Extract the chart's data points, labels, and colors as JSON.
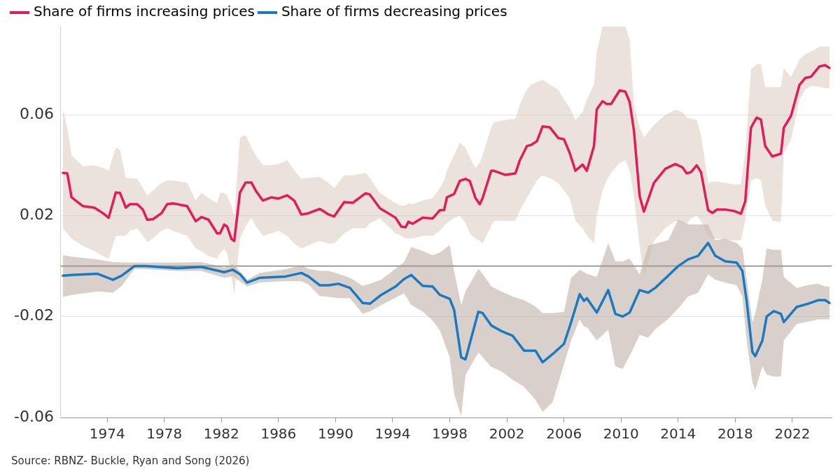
{
  "chart_data": {
    "type": "line",
    "xlim": [
      1970.75,
      2024.75
    ],
    "xticks": [
      1974,
      1978,
      1982,
      1986,
      1990,
      1994,
      1998,
      2002,
      2006,
      2010,
      2014,
      2018,
      2022
    ],
    "ylim": [
      -0.06,
      0.095
    ],
    "yticks": [
      -0.06,
      -0.02,
      0.02,
      0.06
    ],
    "grid": "y",
    "legend": "top left",
    "line_style": "solid",
    "ref_lines": [
      {
        "axis": "y",
        "value": 0,
        "color": "#808080"
      }
    ],
    "annotations": [
      "Source: RBNZ- Buckle, Ryan and Song (2026)"
    ],
    "series": [
      {
        "name": "Share of firms increasing prices",
        "color": "#e31b5d",
        "x": [
          1970.9,
          1971.2,
          1971.5,
          1972.3,
          1973.1,
          1973.7,
          1974.1,
          1974.6,
          1974.9,
          1975.3,
          1975.6,
          1976.1,
          1976.5,
          1976.8,
          1977.2,
          1977.8,
          1978.2,
          1978.6,
          1979.6,
          1980.2,
          1980.6,
          1981.1,
          1981.7,
          1981.9,
          1982.2,
          1982.4,
          1982.7,
          1982.9,
          1983.3,
          1983.7,
          1984.1,
          1984.4,
          1984.9,
          1985.5,
          1986.0,
          1986.6,
          1987.1,
          1987.6,
          1988.0,
          1988.9,
          1989.5,
          1989.9,
          1990.6,
          1991.2,
          1992.1,
          1992.4,
          1993.1,
          1994.2,
          1994.6,
          1994.9,
          1995.1,
          1995.4,
          1996.1,
          1996.8,
          1997.3,
          1997.6,
          1997.8,
          1998.3,
          1998.7,
          1999.1,
          1999.4,
          1999.8,
          2000.1,
          2000.3,
          2000.9,
          2001.1,
          2001.9,
          2002.6,
          2002.9,
          2003.4,
          2003.7,
          2004.1,
          2004.5,
          2005.0,
          2005.6,
          2006.0,
          2006.4,
          2006.8,
          2007.3,
          2007.6,
          2008.1,
          2008.3,
          2008.7,
          2009.0,
          2009.3,
          2009.9,
          2010.3,
          2010.6,
          2010.9,
          2011.3,
          2011.6,
          2012.3,
          2013.1,
          2013.8,
          2014.3,
          2014.6,
          2014.9,
          2015.3,
          2015.6,
          2016.1,
          2016.4,
          2016.7,
          2017.3,
          2017.9,
          2018.4,
          2018.7,
          2019.1,
          2019.5,
          2019.8,
          2020.1,
          2020.6,
          2021.2,
          2021.4,
          2021.9,
          2022.5,
          2022.9,
          2023.3,
          2023.9,
          2024.3,
          2024.6
        ],
        "values": [
          0.037,
          0.0368,
          0.0273,
          0.0238,
          0.0232,
          0.021,
          0.0192,
          0.0292,
          0.029,
          0.0232,
          0.0246,
          0.0246,
          0.0224,
          0.0184,
          0.0186,
          0.021,
          0.0246,
          0.0249,
          0.0238,
          0.0178,
          0.0195,
          0.0184,
          0.013,
          0.013,
          0.0165,
          0.0157,
          0.0108,
          0.01,
          0.0292,
          0.0332,
          0.0332,
          0.03,
          0.026,
          0.0273,
          0.0268,
          0.0281,
          0.026,
          0.0205,
          0.0208,
          0.0227,
          0.0205,
          0.0197,
          0.0254,
          0.0251,
          0.0289,
          0.0284,
          0.023,
          0.0192,
          0.0157,
          0.0154,
          0.0176,
          0.0168,
          0.0192,
          0.0189,
          0.0222,
          0.0222,
          0.0273,
          0.0286,
          0.0338,
          0.0346,
          0.0338,
          0.027,
          0.0246,
          0.027,
          0.0378,
          0.0378,
          0.0362,
          0.0368,
          0.0419,
          0.0476,
          0.0481,
          0.0495,
          0.0554,
          0.0551,
          0.0508,
          0.0503,
          0.0449,
          0.0378,
          0.0403,
          0.0378,
          0.0476,
          0.0622,
          0.0654,
          0.0643,
          0.0643,
          0.0697,
          0.0692,
          0.0651,
          0.0538,
          0.0278,
          0.0216,
          0.033,
          0.0386,
          0.0405,
          0.0392,
          0.0368,
          0.0373,
          0.04,
          0.0373,
          0.0222,
          0.0211,
          0.0224,
          0.0224,
          0.0219,
          0.0208,
          0.0257,
          0.0549,
          0.0589,
          0.0581,
          0.0476,
          0.0435,
          0.0446,
          0.0549,
          0.0595,
          0.0719,
          0.0746,
          0.0751,
          0.0792,
          0.0797,
          0.0786
        ],
        "lower": [
          0.015,
          0.013,
          0.011,
          0.008,
          0.006,
          0.004,
          0.003,
          0.012,
          0.012,
          0.012,
          0.014,
          0.015,
          0.012,
          0.0095,
          0.011,
          0.014,
          0.015,
          0.014,
          0.012,
          0.007,
          0.006,
          0.004,
          0.003,
          0.005,
          0.007,
          0.005,
          -0.004,
          -0.011,
          0.011,
          0.016,
          0.019,
          0.016,
          0.012,
          0.013,
          0.014,
          0.012,
          0.009,
          0.007,
          0.008,
          0.01,
          0.009,
          0.009,
          0.013,
          0.015,
          0.015,
          0.017,
          0.019,
          0.013,
          0.012,
          0.011,
          0.011,
          0.011,
          0.012,
          0.012,
          0.014,
          0.016,
          0.017,
          0.019,
          0.02,
          0.017,
          0.013,
          0.011,
          0.01,
          0.009,
          0.016,
          0.018,
          0.018,
          0.018,
          0.022,
          0.027,
          0.03,
          0.034,
          0.036,
          0.035,
          0.033,
          0.03,
          0.027,
          0.018,
          0.015,
          0.012,
          0.009,
          0.02,
          0.03,
          0.034,
          0.037,
          0.041,
          0.042,
          0.038,
          0.028,
          0.008,
          -0.004,
          0.01,
          0.015,
          0.018,
          0.017,
          0.0165,
          0.019,
          0.02,
          0.018,
          0.012,
          0.011,
          0.011,
          0.0103,
          0.0103,
          0.0103,
          0.018,
          0.034,
          0.035,
          0.034,
          0.024,
          0.018,
          0.0176,
          0.045,
          0.05,
          0.066,
          0.07,
          0.0716,
          0.071,
          0.0705,
          0.0705
        ],
        "upper": [
          0.062,
          0.055,
          0.044,
          0.0395,
          0.04,
          0.039,
          0.038,
          0.047,
          0.046,
          0.035,
          0.035,
          0.0346,
          0.031,
          0.028,
          0.03,
          0.033,
          0.034,
          0.034,
          0.033,
          0.026,
          0.029,
          0.027,
          0.025,
          0.029,
          0.029,
          0.028,
          0.024,
          0.02,
          0.051,
          0.052,
          0.047,
          0.044,
          0.04,
          0.04,
          0.0405,
          0.042,
          0.038,
          0.0346,
          0.035,
          0.0354,
          0.033,
          0.031,
          0.036,
          0.036,
          0.037,
          0.035,
          0.029,
          0.025,
          0.024,
          0.024,
          0.025,
          0.0246,
          0.026,
          0.027,
          0.031,
          0.034,
          0.038,
          0.044,
          0.049,
          0.047,
          0.043,
          0.039,
          0.041,
          0.044,
          0.055,
          0.057,
          0.058,
          0.0584,
          0.064,
          0.07,
          0.072,
          0.073,
          0.0738,
          0.072,
          0.07,
          0.066,
          0.063,
          0.058,
          0.061,
          0.066,
          0.072,
          0.085,
          0.095,
          0.095,
          0.095,
          0.095,
          0.095,
          0.09,
          0.064,
          0.055,
          0.051,
          0.056,
          0.06,
          0.062,
          0.061,
          0.059,
          0.0585,
          0.058,
          0.052,
          0.033,
          0.0335,
          0.0335,
          0.033,
          0.0324,
          0.0324,
          0.045,
          0.078,
          0.08,
          0.08,
          0.071,
          0.071,
          0.071,
          0.0786,
          0.075,
          0.082,
          0.084,
          0.085,
          0.087,
          0.087,
          0.087
        ]
      },
      {
        "name": "Share of firms decreasing prices",
        "color": "#1a7abf",
        "x": [
          1970.9,
          1971.5,
          1973.3,
          1974.4,
          1975.0,
          1975.9,
          1976.7,
          1978.9,
          1980.6,
          1982.2,
          1982.8,
          1983.3,
          1983.8,
          1984.7,
          1986.5,
          1987.6,
          1988.1,
          1988.9,
          1989.5,
          1990.2,
          1991.0,
          1991.9,
          1992.4,
          1993.2,
          1994.2,
          1994.8,
          1995.3,
          1996.1,
          1996.8,
          1997.3,
          1998.0,
          1998.3,
          1998.8,
          1999.1,
          2000.0,
          2000.3,
          2000.9,
          2001.6,
          2002.4,
          2003.2,
          2004.0,
          2004.5,
          2005.2,
          2006.0,
          2006.5,
          2007.1,
          2007.4,
          2007.6,
          2008.3,
          2009.1,
          2009.6,
          2010.1,
          2010.6,
          2011.3,
          2011.9,
          2012.4,
          2013.3,
          2014.0,
          2014.7,
          2015.4,
          2016.1,
          2016.6,
          2017.3,
          2018.1,
          2018.5,
          2018.8,
          2019.2,
          2019.4,
          2019.9,
          2020.2,
          2020.7,
          2021.2,
          2021.4,
          2022.3,
          2023.1,
          2023.8,
          2024.3,
          2024.6
        ],
        "values": [
          -0.0038,
          -0.0035,
          -0.003,
          -0.0054,
          -0.0038,
          0.0,
          0.0,
          -0.0008,
          -0.0003,
          -0.0024,
          -0.0014,
          -0.0032,
          -0.0065,
          -0.0046,
          -0.0041,
          -0.0027,
          -0.0041,
          -0.0076,
          -0.0076,
          -0.007,
          -0.0086,
          -0.0146,
          -0.0149,
          -0.0114,
          -0.0081,
          -0.0051,
          -0.0035,
          -0.0078,
          -0.0081,
          -0.0114,
          -0.013,
          -0.0173,
          -0.0362,
          -0.037,
          -0.0181,
          -0.0186,
          -0.0235,
          -0.0257,
          -0.0276,
          -0.0335,
          -0.0335,
          -0.0381,
          -0.0349,
          -0.0308,
          -0.0222,
          -0.0111,
          -0.0138,
          -0.0127,
          -0.0184,
          -0.0095,
          -0.0189,
          -0.02,
          -0.0184,
          -0.0095,
          -0.0105,
          -0.0086,
          -0.0038,
          0.0,
          0.0027,
          0.0041,
          0.0092,
          0.0041,
          0.0019,
          0.0014,
          -0.0019,
          -0.0138,
          -0.034,
          -0.0357,
          -0.0295,
          -0.02,
          -0.0178,
          -0.0189,
          -0.0222,
          -0.0162,
          -0.0149,
          -0.0135,
          -0.0135,
          -0.0146
        ],
        "lower": [
          -0.0122,
          -0.0115,
          -0.01,
          -0.0105,
          -0.008,
          -0.0011,
          -0.0012,
          -0.0019,
          -0.0019,
          -0.0046,
          -0.004,
          -0.006,
          -0.0081,
          -0.0065,
          -0.0059,
          -0.006,
          -0.0073,
          -0.0119,
          -0.0122,
          -0.0127,
          -0.0127,
          -0.0189,
          -0.018,
          -0.0154,
          -0.0125,
          -0.0108,
          -0.0154,
          -0.018,
          -0.0216,
          -0.0254,
          -0.0362,
          -0.0505,
          -0.0595,
          -0.0432,
          -0.0343,
          -0.036,
          -0.04,
          -0.0416,
          -0.045,
          -0.0478,
          -0.053,
          -0.0578,
          -0.054,
          -0.0389,
          -0.0295,
          -0.0211,
          -0.0241,
          -0.0241,
          -0.0295,
          -0.0251,
          -0.0397,
          -0.0408,
          -0.0357,
          -0.0273,
          -0.0284,
          -0.025,
          -0.021,
          -0.0168,
          -0.012,
          -0.0105,
          -0.0032,
          -0.0054,
          -0.0065,
          -0.0076,
          -0.012,
          -0.0295,
          -0.046,
          -0.0492,
          -0.0397,
          -0.043,
          -0.0438,
          -0.0438,
          -0.0295,
          -0.023,
          -0.022,
          -0.0211,
          -0.0211,
          -0.0211
        ],
        "upper": [
          0.0043,
          0.0038,
          0.0027,
          0.0016,
          0.0015,
          0.0014,
          0.0014,
          0.0014,
          0.0016,
          -0.0005,
          0.0008,
          -0.002,
          -0.0054,
          -0.0027,
          -0.0012,
          0.0003,
          -0.001,
          -0.0019,
          -0.0019,
          -0.003,
          -0.0046,
          -0.0078,
          -0.007,
          -0.0054,
          -0.001,
          0.0016,
          0.0076,
          0.006,
          0.0043,
          0.0054,
          0.0084,
          -0.0019,
          -0.0154,
          -0.01,
          -0.0011,
          -0.003,
          -0.008,
          -0.01,
          -0.012,
          -0.0135,
          -0.016,
          -0.0186,
          -0.0186,
          -0.0181,
          -0.0046,
          -0.0014,
          -0.0024,
          -0.003,
          -0.0043,
          0.0092,
          0.0019,
          0.0019,
          0.003,
          -0.0032,
          0.0081,
          0.009,
          0.0103,
          0.0184,
          0.0165,
          0.0165,
          0.0165,
          0.0103,
          0.0108,
          0.0092,
          0.007,
          -0.005,
          -0.0222,
          -0.0189,
          -0.005,
          0.007,
          0.0065,
          0.0065,
          -0.0043,
          -0.0086,
          -0.0075,
          -0.007,
          -0.0081,
          -0.0081
        ]
      }
    ]
  }
}
